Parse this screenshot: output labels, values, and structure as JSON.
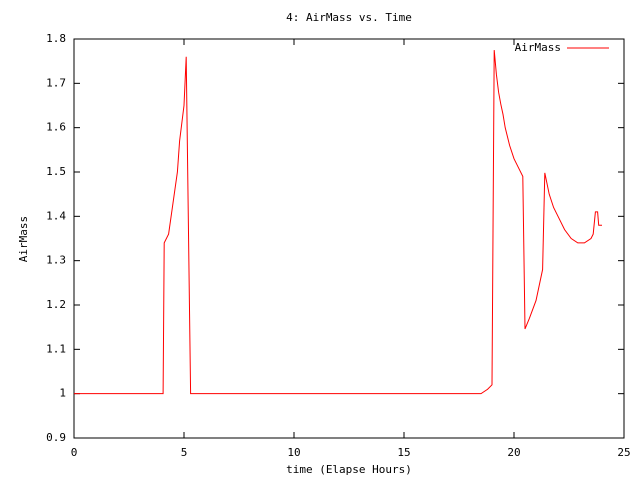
{
  "chart_data": {
    "type": "line",
    "title": "4: AirMass vs. Time",
    "x_label": "time (Elapse Hours)",
    "y_label": "AirMass",
    "x": [
      0,
      4.0,
      4.05,
      4.1,
      4.3,
      4.5,
      4.7,
      4.8,
      5.0,
      5.1,
      5.3,
      18.5,
      18.8,
      19.0,
      19.1,
      19.2,
      19.3,
      19.4,
      19.5,
      19.6,
      19.8,
      20.0,
      20.2,
      20.4,
      20.5,
      20.7,
      21.0,
      21.3,
      21.4,
      21.6,
      21.8,
      22.0,
      22.3,
      22.6,
      22.9,
      23.2,
      23.5,
      23.6,
      23.7,
      23.8,
      23.85,
      24.0
    ],
    "series": [
      {
        "name": "AirMass",
        "color": "#ff0000",
        "values": [
          1,
          1,
          1.0,
          1.34,
          1.36,
          1.43,
          1.5,
          1.57,
          1.65,
          1.76,
          1.0,
          1.0,
          1.01,
          1.02,
          1.775,
          1.72,
          1.68,
          1.653,
          1.63,
          1.6,
          1.56,
          1.53,
          1.51,
          1.49,
          1.146,
          1.17,
          1.21,
          1.28,
          1.498,
          1.45,
          1.42,
          1.4,
          1.37,
          1.35,
          1.34,
          1.34,
          1.35,
          1.36,
          1.41,
          1.41,
          1.38,
          1.38
        ]
      }
    ],
    "xlim": [
      0,
      25
    ],
    "xticks": [
      0,
      5,
      10,
      15,
      20,
      25
    ],
    "ylim": [
      0.9,
      1.8
    ],
    "yticks": [
      0.9,
      1,
      1.1,
      1.2,
      1.3,
      1.4,
      1.5,
      1.6,
      1.7,
      1.8
    ],
    "grid": false,
    "legend": "top-right"
  }
}
